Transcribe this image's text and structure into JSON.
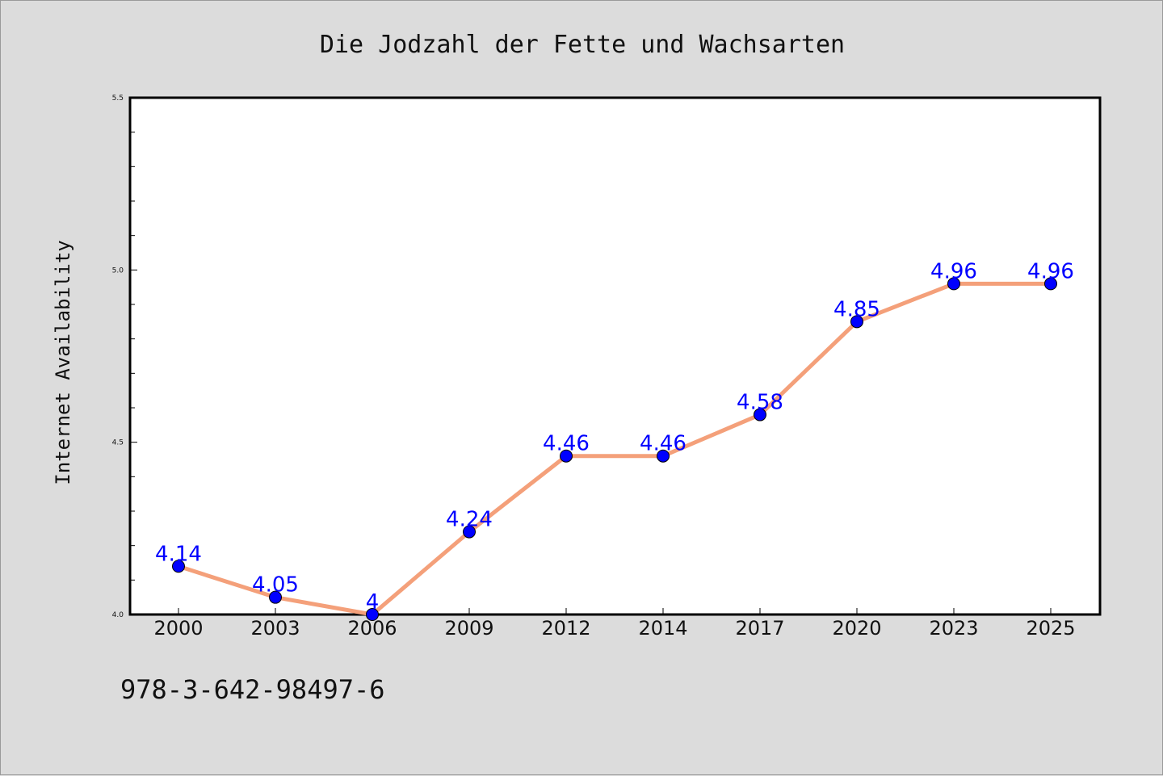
{
  "chart_data": {
    "type": "line",
    "title": "Die Jodzahl der Fette und Wachsarten",
    "xlabel": "",
    "ylabel": "Internet Availability",
    "categories": [
      "2000",
      "2003",
      "2006",
      "2009",
      "2012",
      "2014",
      "2017",
      "2020",
      "2023",
      "2025"
    ],
    "series": [
      {
        "values": [
          4.14,
          4.05,
          4.0,
          4.24,
          4.46,
          4.46,
          4.58,
          4.85,
          4.96,
          4.96
        ],
        "labels": [
          "4.14",
          "4.05",
          "4",
          "4.24",
          "4.46",
          "4.46",
          "4.58",
          "4.85",
          "4.96",
          "4.96"
        ],
        "line_color": "#f4a07a",
        "marker_color": "#0000ff"
      }
    ],
    "ylim": [
      4.0,
      5.5
    ],
    "yticks": [
      "4.0",
      "4.5",
      "5.0",
      "5.5"
    ],
    "grid": false,
    "legend": "none"
  },
  "annotation": "978-3-642-98497-6",
  "colors": {
    "background": "#dcdcdc",
    "plot_background": "#ffffff",
    "data_label": "#0000ff"
  }
}
